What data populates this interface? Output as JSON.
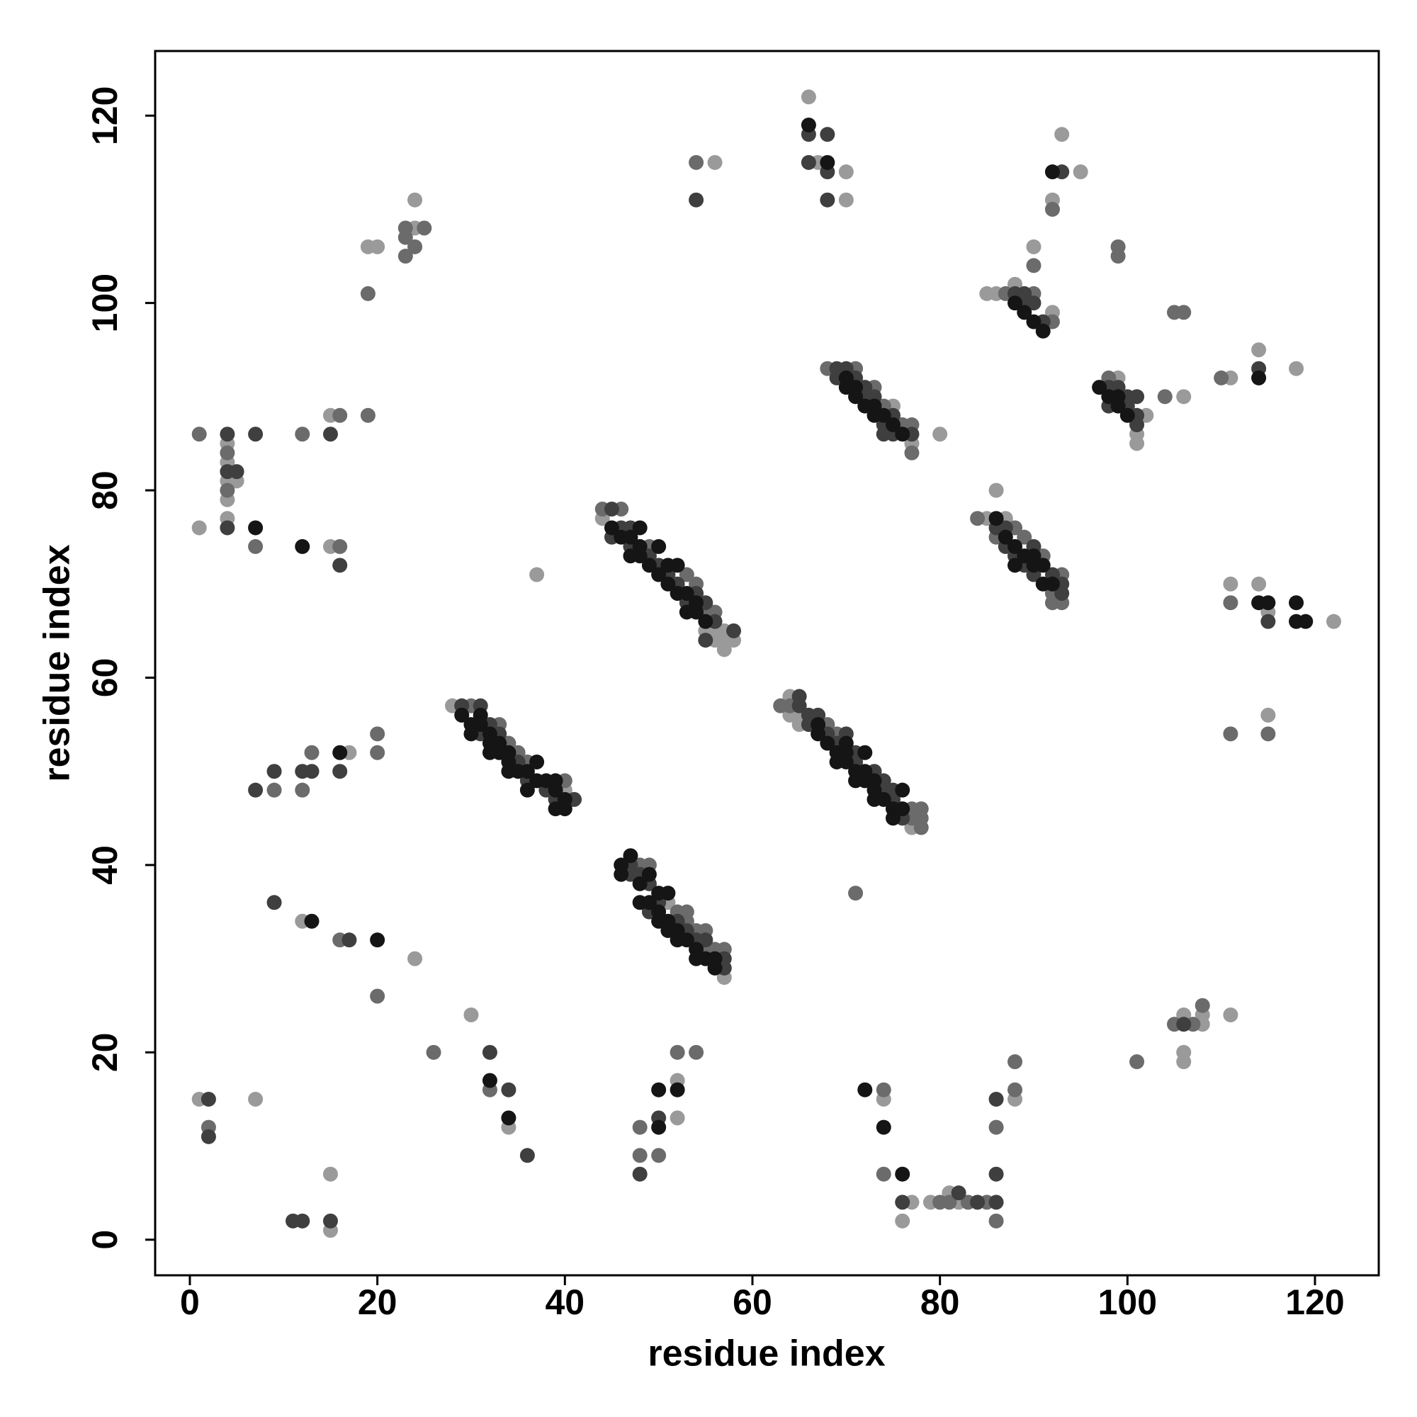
{
  "chart_data": {
    "type": "scatter",
    "xlabel": "residue index",
    "ylabel": "residue index",
    "xlim": [
      -3.7,
      126.8
    ],
    "ylim": [
      -3.8,
      126.9
    ],
    "xticks": [
      0,
      20,
      40,
      60,
      80,
      100,
      120
    ],
    "yticks": [
      0,
      20,
      40,
      60,
      80,
      100,
      120
    ],
    "grid": false,
    "series": [
      {
        "color": "#9a9a9a",
        "x": [
          1,
          7,
          15,
          15,
          12,
          24,
          30,
          34,
          17,
          37,
          1,
          4,
          4,
          4,
          5,
          4,
          4,
          15,
          15,
          19,
          20,
          24,
          24,
          56,
          66,
          67,
          70,
          70,
          95,
          93,
          92,
          90,
          85,
          86,
          88,
          92,
          75,
          77,
          80,
          99,
          101,
          101,
          102,
          106,
          111,
          114,
          118,
          86,
          85,
          87,
          111,
          114,
          115,
          122,
          115,
          44,
          55,
          56,
          57,
          56,
          57,
          58,
          57,
          28,
          40,
          51,
          57,
          64,
          64,
          65,
          65,
          77,
          52,
          52,
          74,
          76,
          77,
          79,
          81,
          82,
          88,
          106,
          108,
          108,
          106,
          106,
          111
        ],
        "y": [
          15,
          15,
          1,
          7,
          34,
          30,
          24,
          12,
          52,
          71,
          76,
          85,
          83,
          81,
          81,
          79,
          77,
          88,
          74,
          106,
          106,
          108,
          111,
          115,
          122,
          115,
          114,
          111,
          114,
          118,
          111,
          106,
          101,
          101,
          102,
          99,
          89,
          85,
          86,
          92,
          86,
          85,
          88,
          90,
          92,
          95,
          93,
          80,
          77,
          77,
          70,
          70,
          67,
          66,
          56,
          77,
          65,
          65,
          65,
          64,
          64,
          64,
          63,
          57,
          48,
          36,
          28,
          58,
          56,
          56,
          55,
          44,
          17,
          13,
          15,
          2,
          4,
          4,
          5,
          4,
          15,
          24,
          24,
          23,
          20,
          19,
          24
        ]
      },
      {
        "color": "#6b6b6b",
        "x": [
          2,
          16,
          20,
          26,
          32,
          9,
          12,
          13,
          20,
          20,
          1,
          4,
          4,
          7,
          12,
          16,
          16,
          19,
          19,
          23,
          23,
          23,
          24,
          25,
          54,
          92,
          90,
          99,
          99,
          87,
          90,
          92,
          105,
          106,
          68,
          71,
          73,
          74,
          76,
          77,
          77,
          98,
          104,
          110,
          84,
          86,
          88,
          89,
          91,
          93,
          92,
          92,
          93,
          111,
          111,
          115,
          71,
          44,
          46,
          49,
          53,
          54,
          55,
          56,
          30,
          33,
          34,
          35,
          36,
          40,
          48,
          49,
          52,
          53,
          53,
          54,
          55,
          55,
          56,
          57,
          63,
          64,
          68,
          69,
          77,
          78,
          77,
          78,
          78,
          48,
          48,
          50,
          52,
          54,
          74,
          74,
          80,
          81,
          83,
          85,
          86,
          86,
          88,
          88,
          101,
          105,
          107,
          108
        ],
        "y": [
          12,
          32,
          26,
          20,
          16,
          48,
          48,
          52,
          54,
          52,
          86,
          84,
          80,
          74,
          86,
          88,
          74,
          88,
          101,
          108,
          107,
          105,
          106,
          108,
          115,
          110,
          104,
          106,
          105,
          101,
          101,
          98,
          99,
          99,
          93,
          93,
          91,
          89,
          87,
          87,
          84,
          92,
          90,
          92,
          77,
          75,
          76,
          75,
          73,
          71,
          69,
          68,
          68,
          68,
          54,
          54,
          37,
          78,
          78,
          74,
          71,
          70,
          67,
          67,
          57,
          55,
          53,
          52,
          51,
          49,
          40,
          40,
          35,
          35,
          34,
          33,
          33,
          31,
          31,
          31,
          57,
          57,
          55,
          54,
          46,
          46,
          45,
          45,
          44,
          12,
          9,
          9,
          20,
          20,
          16,
          7,
          4,
          4,
          4,
          4,
          2,
          12,
          19,
          16,
          19,
          23,
          23,
          25
        ]
      },
      {
        "color": "#3f3f3f",
        "x": [
          2,
          2,
          11,
          12,
          15,
          9,
          17,
          32,
          34,
          36,
          7,
          9,
          12,
          13,
          16,
          4,
          4,
          5,
          4,
          7,
          15,
          16,
          54,
          66,
          66,
          68,
          68,
          68,
          93,
          88,
          89,
          89,
          90,
          91,
          69,
          70,
          69,
          71,
          72,
          72,
          73,
          74,
          75,
          74,
          75,
          77,
          98,
          99,
          98,
          100,
          100,
          101,
          101,
          101,
          114,
          86,
          87,
          87,
          88,
          90,
          89,
          92,
          90,
          93,
          93,
          115,
          45,
          46,
          45,
          47,
          47,
          49,
          50,
          51,
          52,
          53,
          54,
          55,
          56,
          58,
          55,
          29,
          31,
          32,
          31,
          33,
          35,
          36,
          38,
          39,
          41,
          47,
          47,
          48,
          49,
          50,
          49,
          52,
          53,
          54,
          55,
          57,
          57,
          65,
          65,
          66,
          66,
          67,
          68,
          70,
          69,
          71,
          71,
          73,
          74,
          74,
          75,
          75,
          76,
          48,
          50,
          76,
          82,
          84,
          86,
          86,
          86,
          106
        ],
        "y": [
          15,
          11,
          2,
          2,
          2,
          36,
          32,
          20,
          16,
          9,
          48,
          50,
          50,
          50,
          50,
          86,
          82,
          82,
          76,
          86,
          86,
          72,
          111,
          118,
          115,
          118,
          114,
          111,
          114,
          101,
          101,
          100,
          100,
          98,
          93,
          93,
          92,
          92,
          91,
          90,
          90,
          87,
          88,
          86,
          86,
          86,
          91,
          91,
          89,
          90,
          89,
          90,
          88,
          87,
          93,
          76,
          76,
          74,
          73,
          74,
          72,
          71,
          71,
          70,
          69,
          66,
          78,
          76,
          75,
          76,
          74,
          73,
          72,
          71,
          70,
          68,
          69,
          68,
          66,
          65,
          64,
          57,
          57,
          55,
          54,
          54,
          51,
          49,
          48,
          47,
          47,
          40,
          39,
          39,
          38,
          36,
          35,
          34,
          33,
          32,
          32,
          30,
          29,
          58,
          57,
          56,
          55,
          56,
          54,
          54,
          53,
          52,
          51,
          50,
          49,
          48,
          48,
          47,
          45,
          7,
          13,
          4,
          5,
          4,
          4,
          7,
          15,
          23
        ]
      },
      {
        "color": "#151515",
        "x": [
          13,
          20,
          32,
          34,
          16,
          7,
          12,
          66,
          68,
          92,
          88,
          89,
          90,
          91,
          70,
          70,
          71,
          71,
          72,
          73,
          73,
          74,
          75,
          76,
          97,
          98,
          99,
          99,
          100,
          114,
          86,
          87,
          88,
          89,
          88,
          90,
          90,
          91,
          91,
          92,
          114,
          115,
          118,
          118,
          119,
          45,
          46,
          47,
          48,
          48,
          47,
          48,
          50,
          49,
          50,
          51,
          52,
          51,
          52,
          53,
          54,
          53,
          54,
          55,
          29,
          31,
          30,
          31,
          30,
          32,
          32,
          33,
          32,
          33,
          34,
          34,
          34,
          35,
          36,
          37,
          37,
          38,
          36,
          39,
          39,
          40,
          39,
          40,
          47,
          46,
          46,
          49,
          48,
          50,
          51,
          48,
          49,
          50,
          50,
          51,
          51,
          52,
          52,
          53,
          54,
          54,
          55,
          56,
          56,
          67,
          67,
          68,
          70,
          69,
          70,
          72,
          69,
          70,
          72,
          71,
          71,
          72,
          73,
          73,
          76,
          73,
          74,
          76,
          75,
          75,
          50,
          50,
          52,
          72,
          74,
          76
        ],
        "y": [
          34,
          32,
          17,
          13,
          52,
          76,
          74,
          119,
          115,
          114,
          100,
          99,
          98,
          97,
          92,
          91,
          91,
          90,
          89,
          89,
          88,
          88,
          87,
          86,
          91,
          90,
          90,
          89,
          88,
          92,
          77,
          75,
          74,
          73,
          72,
          73,
          72,
          72,
          70,
          70,
          68,
          68,
          68,
          66,
          66,
          76,
          75,
          75,
          76,
          74,
          73,
          73,
          74,
          72,
          71,
          72,
          72,
          70,
          69,
          69,
          68,
          67,
          67,
          66,
          56,
          56,
          55,
          55,
          54,
          54,
          53,
          53,
          52,
          52,
          52,
          51,
          50,
          50,
          50,
          51,
          49,
          49,
          48,
          49,
          48,
          47,
          46,
          46,
          41,
          40,
          39,
          39,
          38,
          37,
          37,
          36,
          36,
          35,
          34,
          34,
          33,
          33,
          32,
          32,
          31,
          30,
          30,
          30,
          29,
          55,
          54,
          53,
          53,
          52,
          52,
          52,
          51,
          51,
          50,
          50,
          49,
          49,
          49,
          48,
          48,
          47,
          47,
          46,
          46,
          45,
          16,
          12,
          16,
          16,
          12,
          7
        ]
      }
    ]
  }
}
